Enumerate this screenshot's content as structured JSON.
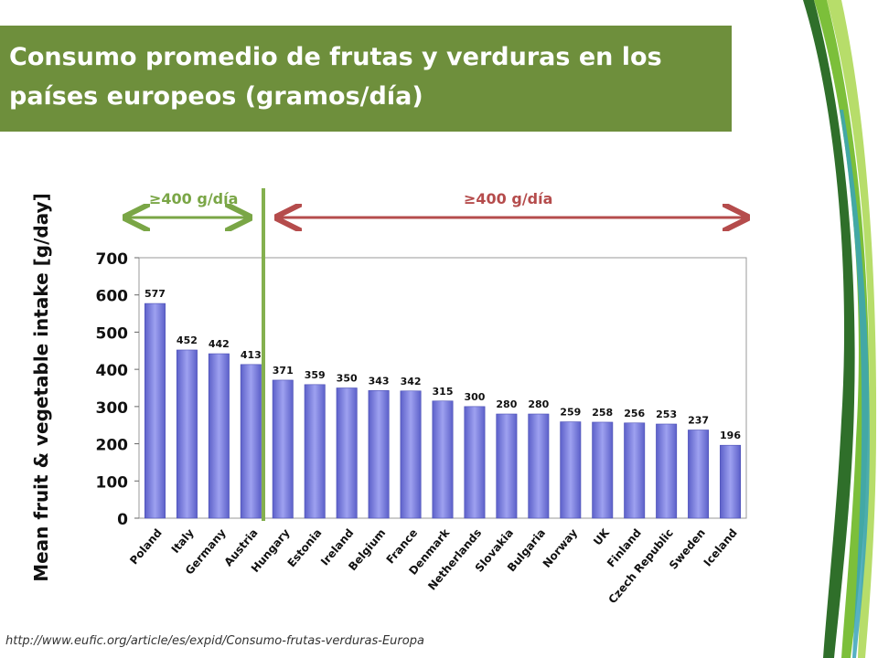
{
  "slide": {
    "title": "Consumo promedio de frutas y verduras en los países europeos (gramos/día)",
    "source": "http://www.eufic.org/article/es/expid/Consumo-frutas-verduras-Europa",
    "title_bg": "#6e8f3c"
  },
  "annotations": {
    "left": {
      "label": "≥400 g/día",
      "color": "#7aa646"
    },
    "right": {
      "label": "≥400 g/día",
      "color": "#b54c4c"
    }
  },
  "chart_data": {
    "type": "bar",
    "ylabel": "Mean fruit & vegetable intake [g/day]",
    "xlabel": "",
    "ylim": [
      0,
      700
    ],
    "yticks": [
      0,
      100,
      200,
      300,
      400,
      500,
      600,
      700
    ],
    "categories": [
      "Poland",
      "Italy",
      "Germany",
      "Austria",
      "Hungary",
      "Estonia",
      "Ireland",
      "Belgium",
      "France",
      "Denmark",
      "Netherlands",
      "Slovakia",
      "Bulgaria",
      "Norway",
      "UK",
      "Finland",
      "Czech Republic",
      "Sweden",
      "Iceland"
    ],
    "values": [
      577,
      452,
      442,
      413,
      371,
      359,
      350,
      343,
      342,
      315,
      300,
      280,
      280,
      259,
      258,
      256,
      253,
      237,
      196
    ],
    "bar_color": "#7b7fe0",
    "grid": false,
    "legend": "none"
  }
}
